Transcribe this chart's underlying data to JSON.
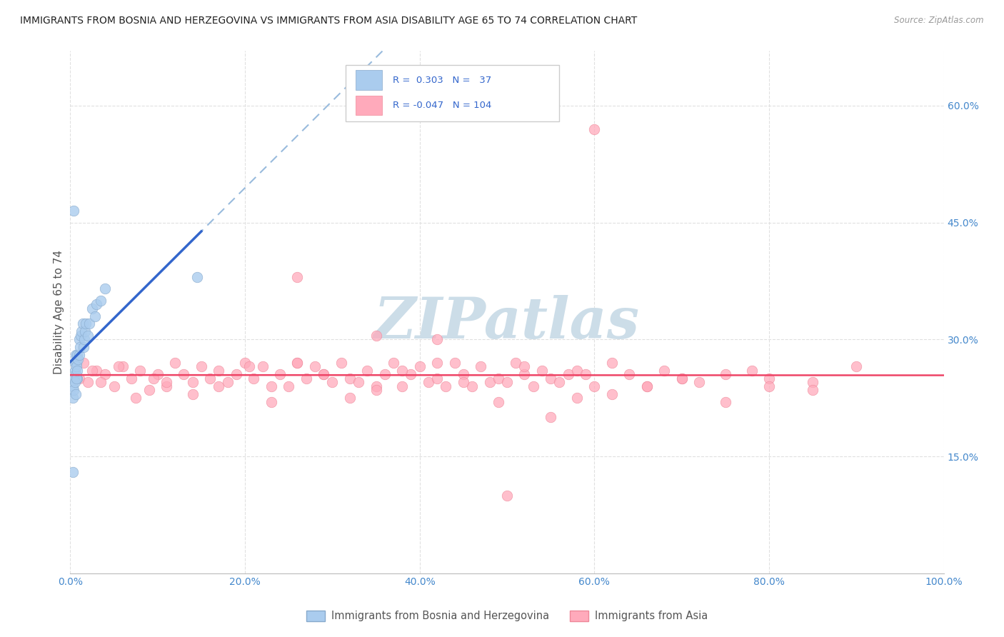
{
  "title": "IMMIGRANTS FROM BOSNIA AND HERZEGOVINA VS IMMIGRANTS FROM ASIA DISABILITY AGE 65 TO 74 CORRELATION CHART",
  "source": "Source: ZipAtlas.com",
  "ylabel": "Disability Age 65 to 74",
  "xlim": [
    0.0,
    100.0
  ],
  "ylim": [
    0.0,
    67.0
  ],
  "yticks": [
    15.0,
    30.0,
    45.0,
    60.0
  ],
  "xticks": [
    0.0,
    20.0,
    40.0,
    60.0,
    80.0,
    100.0
  ],
  "xtick_labels": [
    "0.0%",
    "20.0%",
    "40.0%",
    "60.0%",
    "80.0%",
    "100.0%"
  ],
  "ytick_labels": [
    "15.0%",
    "30.0%",
    "45.0%",
    "60.0%"
  ],
  "background_color": "#ffffff",
  "grid_color": "#e0e0e0",
  "blue_color": "#aaccee",
  "blue_edge": "#88aacc",
  "pink_color": "#ffaabb",
  "pink_edge": "#ee8899",
  "blue_line_color": "#3366cc",
  "pink_line_color": "#ee4466",
  "dashed_line_color": "#99bbdd",
  "watermark_color": "#ccdde8",
  "bosnia_x": [
    0.4,
    0.5,
    0.5,
    0.6,
    0.6,
    0.7,
    0.7,
    0.8,
    0.8,
    0.9,
    1.0,
    1.0,
    1.1,
    1.2,
    1.3,
    1.4,
    1.5,
    1.6,
    1.7,
    1.8,
    2.0,
    2.2,
    2.5,
    2.8,
    3.0,
    3.5,
    4.0,
    0.3,
    0.3,
    0.4,
    0.5,
    0.6,
    0.7,
    0.8,
    0.3,
    14.5,
    0.4
  ],
  "bosnia_y": [
    25.0,
    27.0,
    26.0,
    28.0,
    25.5,
    27.0,
    26.5,
    28.0,
    25.0,
    27.5,
    28.0,
    30.0,
    29.0,
    30.5,
    31.0,
    32.0,
    29.0,
    30.0,
    31.0,
    32.0,
    30.5,
    32.0,
    34.0,
    33.0,
    34.5,
    35.0,
    36.5,
    22.5,
    24.0,
    23.5,
    24.5,
    23.0,
    25.0,
    26.0,
    13.0,
    38.0,
    46.5
  ],
  "asia_x": [
    1.0,
    2.0,
    3.0,
    4.0,
    5.0,
    6.0,
    7.0,
    8.0,
    9.0,
    10.0,
    11.0,
    12.0,
    13.0,
    14.0,
    15.0,
    16.0,
    17.0,
    18.0,
    19.0,
    20.0,
    21.0,
    22.0,
    23.0,
    24.0,
    25.0,
    26.0,
    27.0,
    28.0,
    29.0,
    30.0,
    31.0,
    32.0,
    33.0,
    34.0,
    35.0,
    36.0,
    37.0,
    38.0,
    39.0,
    40.0,
    41.0,
    42.0,
    43.0,
    44.0,
    45.0,
    46.0,
    47.0,
    48.0,
    49.0,
    50.0,
    51.0,
    52.0,
    53.0,
    54.0,
    55.0,
    56.0,
    57.0,
    58.0,
    59.0,
    60.0,
    62.0,
    64.0,
    66.0,
    68.0,
    70.0,
    72.0,
    75.0,
    78.0,
    80.0,
    85.0,
    90.0,
    1.5,
    2.5,
    3.5,
    5.5,
    7.5,
    9.5,
    11.0,
    14.0,
    17.0,
    20.5,
    23.0,
    26.0,
    29.0,
    32.0,
    35.0,
    38.0,
    42.0,
    45.0,
    49.0,
    52.0,
    55.0,
    58.0,
    62.0,
    66.0,
    70.0,
    75.0,
    80.0,
    85.0,
    60.0,
    26.0,
    35.0,
    42.0,
    50.0
  ],
  "asia_y": [
    25.0,
    24.5,
    26.0,
    25.5,
    24.0,
    26.5,
    25.0,
    26.0,
    23.5,
    25.5,
    24.0,
    27.0,
    25.5,
    24.5,
    26.5,
    25.0,
    26.0,
    24.5,
    25.5,
    27.0,
    25.0,
    26.5,
    24.0,
    25.5,
    24.0,
    27.0,
    25.0,
    26.5,
    25.5,
    24.5,
    27.0,
    25.0,
    24.5,
    26.0,
    24.0,
    25.5,
    27.0,
    24.0,
    25.5,
    26.5,
    24.5,
    25.0,
    24.0,
    27.0,
    25.5,
    24.0,
    26.5,
    24.5,
    25.0,
    24.5,
    27.0,
    25.5,
    24.0,
    26.0,
    25.0,
    24.5,
    25.5,
    26.0,
    25.5,
    24.0,
    27.0,
    25.5,
    24.0,
    26.0,
    25.0,
    24.5,
    25.5,
    26.0,
    25.0,
    24.5,
    26.5,
    27.0,
    26.0,
    24.5,
    26.5,
    22.5,
    25.0,
    24.5,
    23.0,
    24.0,
    26.5,
    22.0,
    27.0,
    25.5,
    22.5,
    23.5,
    26.0,
    27.0,
    24.5,
    22.0,
    26.5,
    20.0,
    22.5,
    23.0,
    24.0,
    25.0,
    22.0,
    24.0,
    23.5,
    57.0,
    38.0,
    30.5,
    30.0,
    10.0
  ]
}
